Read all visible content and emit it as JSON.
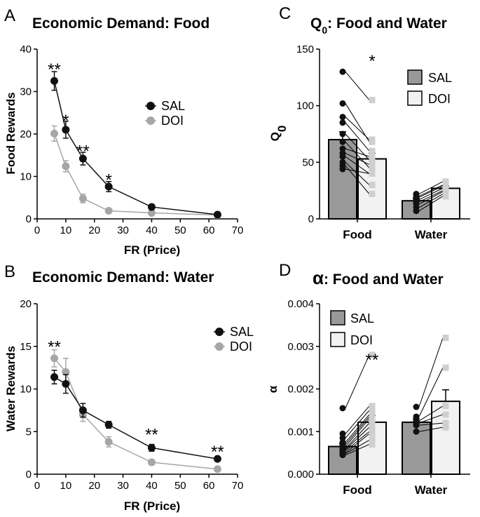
{
  "colors": {
    "sal": "#111111",
    "doi": "#a6a6a6",
    "bar_sal": "#999999",
    "bar_doi": "#f2f2f2",
    "axis": "#000000"
  },
  "chart_data": [
    {
      "id": "A",
      "panel_label": "A",
      "type": "line",
      "title": "Economic Demand: Food",
      "xlabel": "FR (Price)",
      "ylabel": "Food Rewards",
      "xlim": [
        0,
        70
      ],
      "ylim": [
        0,
        40
      ],
      "xticks": [
        0,
        10,
        20,
        30,
        40,
        50,
        60,
        70
      ],
      "yticks": [
        0,
        10,
        20,
        30,
        40
      ],
      "legend": [
        "SAL",
        "DOI"
      ],
      "series": [
        {
          "name": "SAL",
          "x": [
            6,
            10,
            16,
            25,
            40,
            63
          ],
          "y": [
            32.5,
            21.0,
            14.2,
            7.6,
            2.8,
            1.0
          ],
          "err": [
            2.2,
            2.0,
            1.5,
            1.2,
            0.3,
            0.2
          ]
        },
        {
          "name": "DOI",
          "x": [
            6,
            10,
            16,
            25,
            40,
            63
          ],
          "y": [
            20.1,
            12.4,
            4.8,
            1.9,
            1.4,
            0.9
          ],
          "err": [
            1.8,
            1.3,
            1.0,
            0.3,
            0.2,
            0.1
          ]
        }
      ],
      "annotations": [
        {
          "x": 6,
          "y": 36.5,
          "text": "**"
        },
        {
          "x": 10,
          "y": 24.5,
          "text": "*"
        },
        {
          "x": 16,
          "y": 17.3,
          "text": "**"
        },
        {
          "x": 25,
          "y": 10.5,
          "text": "*"
        }
      ]
    },
    {
      "id": "B",
      "panel_label": "B",
      "type": "line",
      "title": "Economic Demand: Water",
      "xlabel": "FR (Price)",
      "ylabel": "Water Rewards",
      "xlim": [
        0,
        70
      ],
      "ylim": [
        0,
        20
      ],
      "xticks": [
        0,
        10,
        20,
        30,
        40,
        50,
        60,
        70
      ],
      "yticks": [
        0,
        5,
        10,
        15,
        20
      ],
      "legend": [
        "SAL",
        "DOI"
      ],
      "series": [
        {
          "name": "SAL",
          "x": [
            6,
            10,
            16,
            25,
            40,
            63
          ],
          "y": [
            11.4,
            10.6,
            7.5,
            5.8,
            3.1,
            1.8
          ],
          "err": [
            0.8,
            1.1,
            0.8,
            0.4,
            0.4,
            0.2
          ]
        },
        {
          "name": "DOI",
          "x": [
            6,
            10,
            16,
            25,
            40,
            63
          ],
          "y": [
            13.6,
            12.0,
            7.0,
            3.8,
            1.4,
            0.6
          ],
          "err": [
            1.0,
            1.6,
            0.8,
            0.6,
            0.3,
            0.1
          ]
        }
      ],
      "annotations": [
        {
          "x": 6,
          "y": 15.6,
          "text": "**"
        },
        {
          "x": 40,
          "y": 5.3,
          "text": "**"
        },
        {
          "x": 63,
          "y": 3.3,
          "text": "**"
        }
      ]
    },
    {
      "id": "C",
      "panel_label": "C",
      "type": "bar",
      "title_main": "Q",
      "title_sub": "0",
      "title_rest": ": Food and Water",
      "ylabel_main": "Q",
      "ylabel_sub": "0",
      "categories": [
        "Food",
        "Water"
      ],
      "ylim": [
        0,
        150
      ],
      "yticks": [
        0,
        50,
        100,
        150
      ],
      "legend": [
        "SAL",
        "DOI"
      ],
      "series": [
        {
          "name": "SAL",
          "values": [
            70,
            16
          ],
          "err": [
            7,
            2
          ]
        },
        {
          "name": "DOI",
          "values": [
            53,
            27
          ],
          "err": [
            5,
            2
          ]
        }
      ],
      "points": {
        "Food": {
          "SAL": [
            130,
            102,
            90,
            85,
            75,
            68,
            62,
            58,
            55,
            50,
            47,
            44
          ],
          "DOI": [
            105,
            68,
            70,
            60,
            52,
            45,
            55,
            48,
            40,
            30,
            22,
            40
          ]
        },
        "Water": {
          "SAL": [
            22,
            20,
            19,
            17,
            15,
            13,
            10,
            7
          ],
          "DOI": [
            33,
            30,
            29,
            27,
            25,
            24,
            22,
            20
          ]
        }
      },
      "annotations": [
        {
          "category": "Food",
          "value": 142,
          "text": "*"
        }
      ]
    },
    {
      "id": "D",
      "panel_label": "D",
      "type": "bar",
      "title_main": "α",
      "title_rest": ": Food and Water",
      "ylabel": "α",
      "categories": [
        "Food",
        "Water"
      ],
      "ylim": [
        0,
        0.004
      ],
      "yticks": [
        "0.000",
        "0.001",
        "0.002",
        "0.003",
        "0.004"
      ],
      "legend": [
        "SAL",
        "DOI"
      ],
      "series": [
        {
          "name": "SAL",
          "values": [
            0.00065,
            0.00122
          ],
          "err": [
            7e-05,
            8e-05
          ]
        },
        {
          "name": "DOI",
          "values": [
            0.00122,
            0.00171
          ],
          "err": [
            0.00016,
            0.00027
          ]
        }
      ],
      "points": {
        "Food": {
          "SAL": [
            0.00155,
            0.00095,
            0.00085,
            0.00075,
            0.0007,
            0.00065,
            0.0006,
            0.00058,
            0.00055,
            0.0005,
            0.00048,
            0.00045
          ],
          "DOI": [
            0.0028,
            0.0016,
            0.0015,
            0.0014,
            0.00135,
            0.0013,
            0.0012,
            0.0011,
            0.001,
            0.00095,
            0.0008,
            0.0007
          ]
        },
        "Water": {
          "SAL": [
            0.00158,
            0.00135,
            0.00125,
            0.0012,
            0.00115,
            0.001
          ],
          "DOI": [
            0.0032,
            0.0025,
            0.0016,
            0.0014,
            0.0012,
            0.0011
          ]
        }
      },
      "annotations": [
        {
          "category": "Food",
          "value": 0.00275,
          "text": "**"
        }
      ]
    }
  ]
}
